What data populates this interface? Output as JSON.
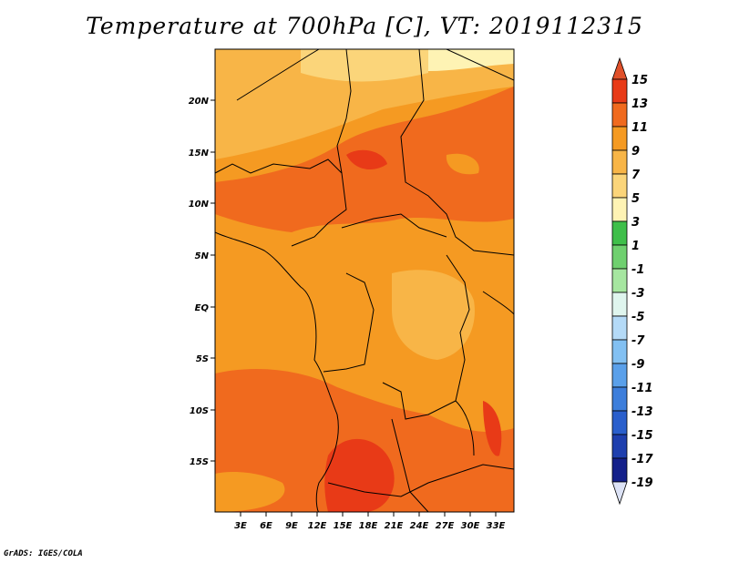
{
  "title": "Temperature at 700hPa [C], VT: 2019112315",
  "footer": "GrADS: IGES/COLA",
  "map": {
    "lat_labels": [
      "20N",
      "15N",
      "10N",
      "5N",
      "EQ",
      "5S",
      "10S",
      "15S"
    ],
    "lon_labels": [
      "3E",
      "6E",
      "9E",
      "12E",
      "15E",
      "18E",
      "21E",
      "24E",
      "27E",
      "30E",
      "33E"
    ]
  },
  "colorbar": {
    "labels": [
      "15",
      "13",
      "11",
      "9",
      "7",
      "5",
      "3",
      "1",
      "-1",
      "-3",
      "-5",
      "-7",
      "-9",
      "-11",
      "-13",
      "-15",
      "-17",
      "-19"
    ],
    "colors": {
      "top_arrow": "#e0502a",
      "c13_15": "#e83a17",
      "c11_13": "#f06a1e",
      "c9_11": "#f59a22",
      "c7_9": "#f8b547",
      "c5_7": "#fbd57a",
      "c3_5": "#fef3b4",
      "c1_3": "#3fbf4a",
      "cm1_1": "#6fd06f",
      "cm3_m1": "#a6e6a0",
      "cm5_m3": "#dff5ee",
      "cm7_m5": "#b4daf7",
      "cm9_m7": "#82c0f2",
      "cm11_m9": "#5aa0ea",
      "cm13_m11": "#3d7edb",
      "cm15_m13": "#2a5fcc",
      "cm17_m15": "#1e3fae",
      "cm19_m17": "#14208a",
      "bottom_arrow": "#dce2f5"
    }
  }
}
